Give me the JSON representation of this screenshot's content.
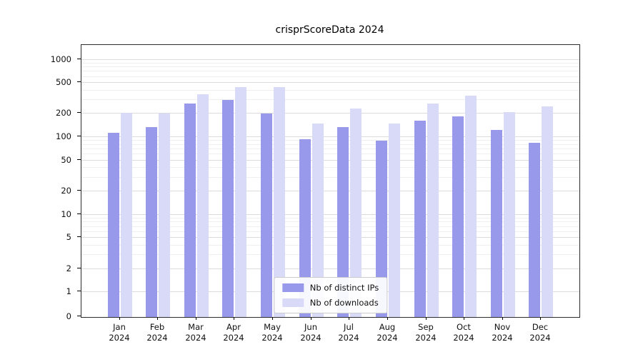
{
  "title": "crisprScoreData 2024",
  "legend": {
    "items": [
      {
        "label": "Nb of distinct IPs",
        "color": "#9999ec"
      },
      {
        "label": "Nb of downloads",
        "color": "#d9d9f8"
      }
    ]
  },
  "y_axis": {
    "tick_labels": [
      "0",
      "1",
      "2",
      "5",
      "10",
      "20",
      "50",
      "100",
      "200",
      "500",
      "1000"
    ]
  },
  "x_axis": {
    "months": [
      "Jan",
      "Feb",
      "Mar",
      "Apr",
      "May",
      "Jun",
      "Jul",
      "Aug",
      "Sep",
      "Oct",
      "Nov",
      "Dec"
    ],
    "year": "2024"
  },
  "chart_data": {
    "type": "bar",
    "title": "crisprScoreData 2024",
    "yscale": "log-with-zero-floor",
    "ylim": [
      0,
      1500
    ],
    "y_ticks": [
      0,
      1,
      2,
      5,
      10,
      20,
      50,
      100,
      200,
      500,
      1000
    ],
    "grid": true,
    "legend_position": "lower center",
    "categories": [
      "Jan 2024",
      "Feb 2024",
      "Mar 2024",
      "Apr 2024",
      "May 2024",
      "Jun 2024",
      "Jul 2024",
      "Aug 2024",
      "Sep 2024",
      "Oct 2024",
      "Nov 2024",
      "Dec 2024"
    ],
    "series": [
      {
        "name": "Nb of distinct IPs",
        "color": "#9999ec",
        "values": [
          115,
          135,
          270,
          300,
          200,
          95,
          135,
          90,
          165,
          185,
          125,
          85
        ]
      },
      {
        "name": "Nb of downloads",
        "color": "#d9d9f8",
        "values": [
          205,
          200,
          360,
          440,
          440,
          150,
          235,
          150,
          270,
          340,
          210,
          250
        ]
      }
    ]
  }
}
